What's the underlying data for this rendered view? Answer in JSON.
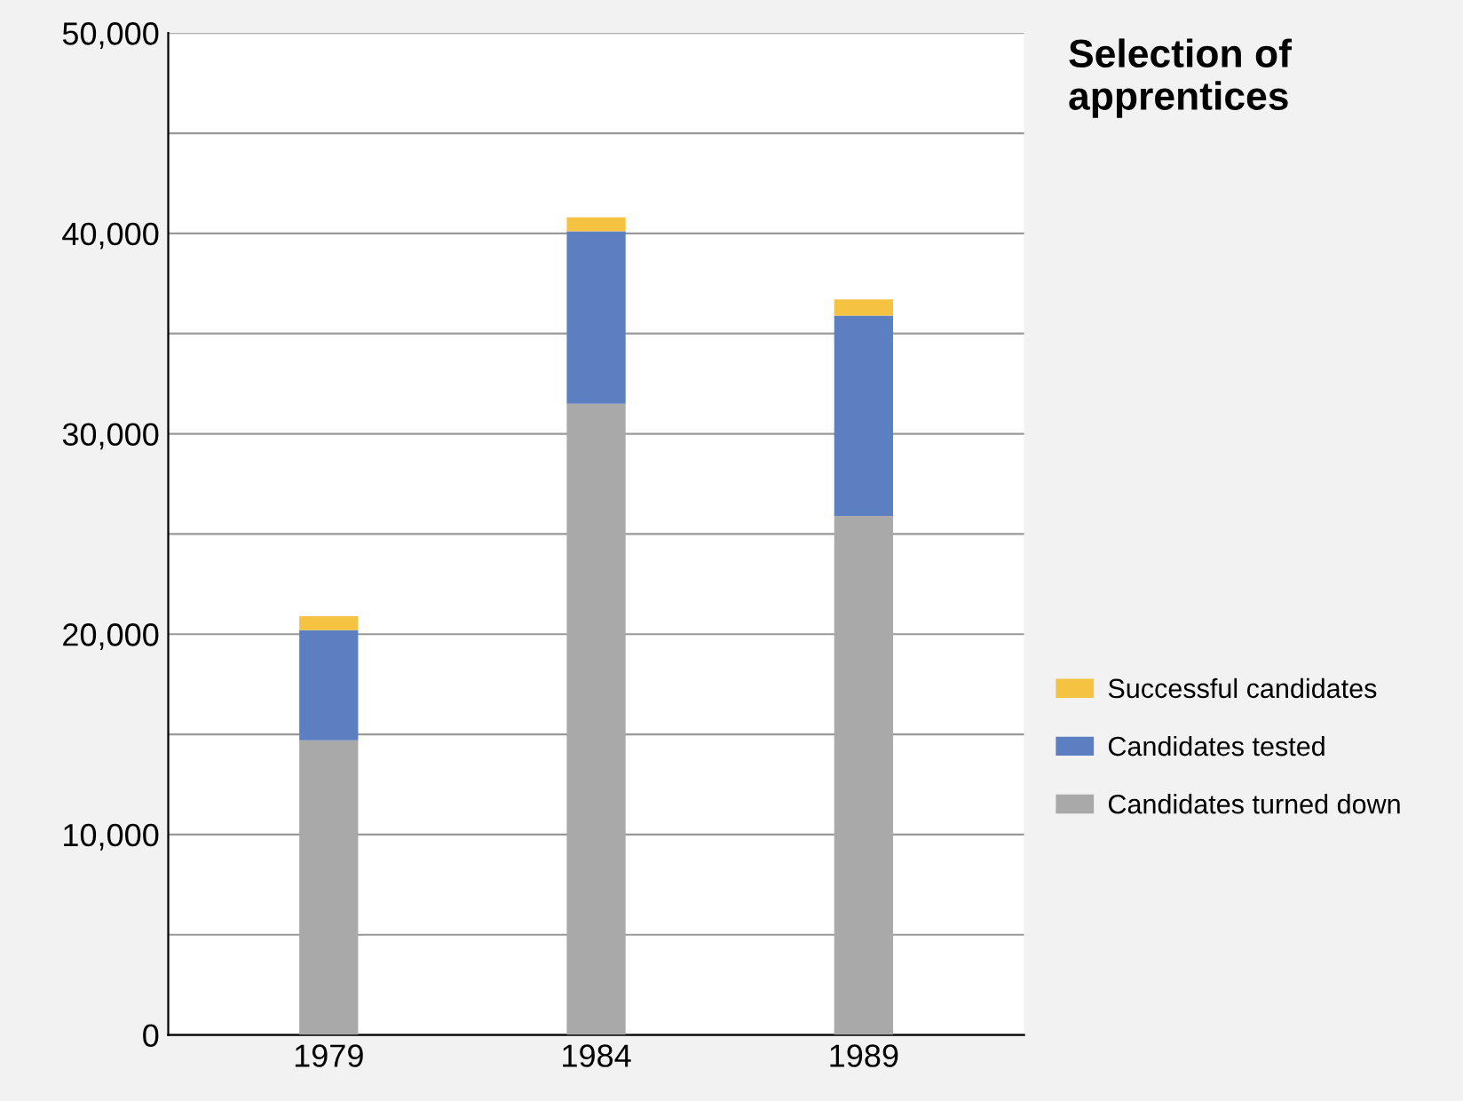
{
  "chart_data": {
    "type": "bar",
    "title": "Selection of apprentices",
    "categories": [
      "1979",
      "1984",
      "1989"
    ],
    "stacked": true,
    "series": [
      {
        "name": "Candidates turned down",
        "color": "#a9a9a9",
        "values": [
          14700,
          31500,
          25900
        ]
      },
      {
        "name": "Candidates tested",
        "color": "#5b7fc0",
        "values": [
          5500,
          8600,
          10000
        ]
      },
      {
        "name": "Successful candidates",
        "color": "#f5c242",
        "values": [
          700,
          700,
          800
        ]
      }
    ],
    "ylim": [
      0,
      50000
    ],
    "yticks": [
      0,
      {
        "value": 5000,
        "label": null
      },
      {
        "value": 10000,
        "label": "10,000"
      },
      {
        "value": 15000,
        "label": null
      },
      {
        "value": 20000,
        "label": "20,000"
      },
      {
        "value": 25000,
        "label": null
      },
      {
        "value": 30000,
        "label": "30,000"
      },
      {
        "value": 35000,
        "label": null
      },
      {
        "value": 40000,
        "label": "40,000"
      },
      {
        "value": 45000,
        "label": null
      },
      {
        "value": 50000,
        "label": "50,000"
      }
    ],
    "grid": "y",
    "legend": "right"
  }
}
